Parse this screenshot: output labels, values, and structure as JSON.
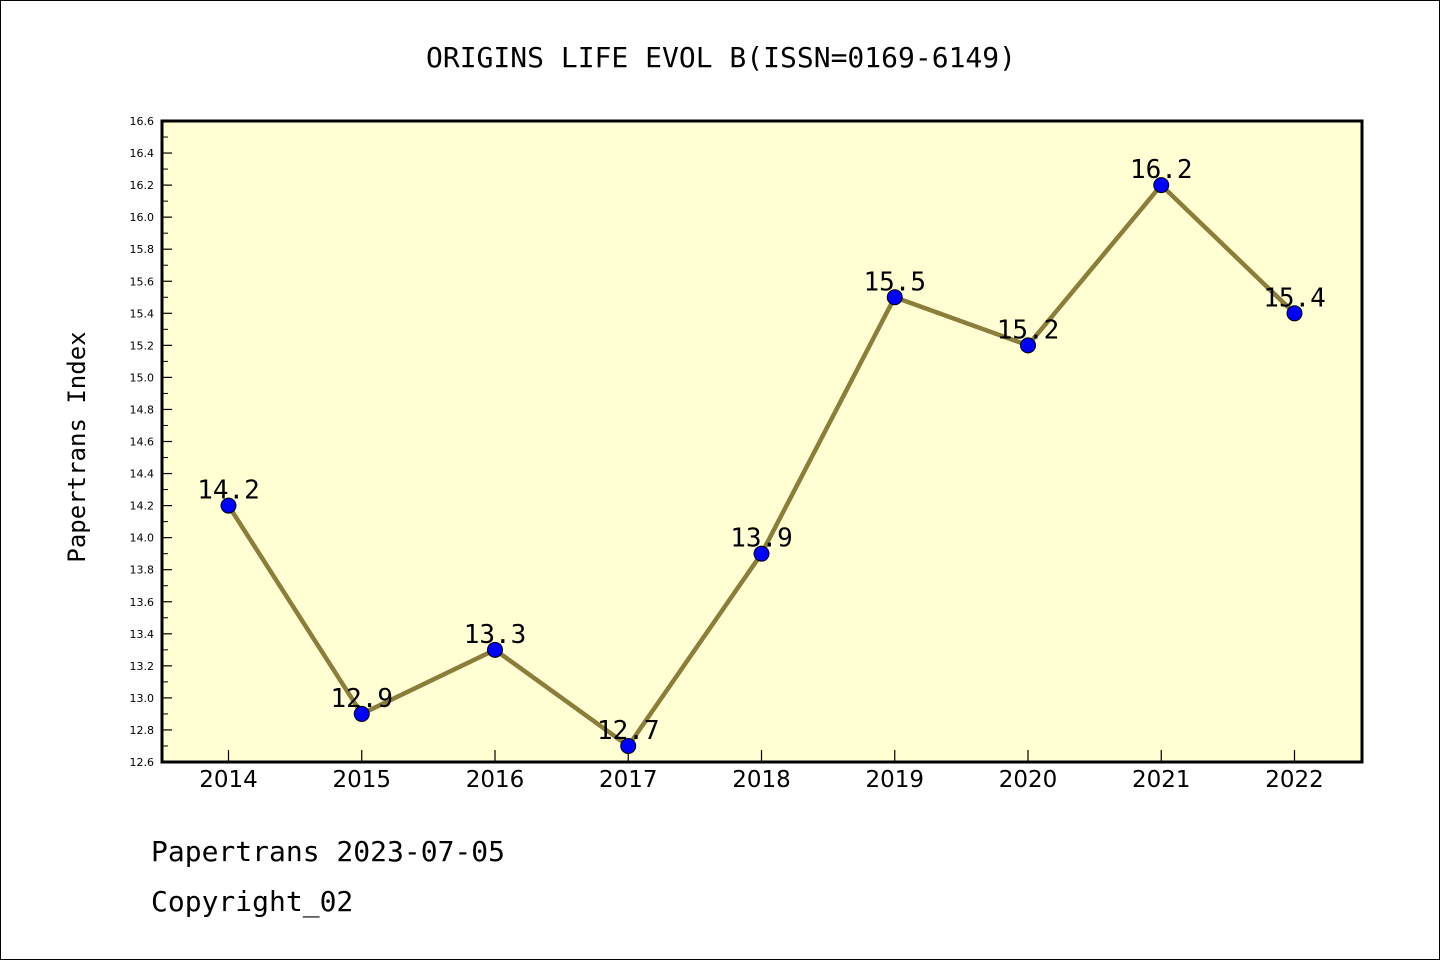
{
  "footer": {
    "line1": "Papertrans 2023-07-05",
    "line2": "Copyright_02"
  },
  "chart_data": {
    "type": "line",
    "title": "ORIGINS LIFE EVOL B(ISSN=0169-6149)",
    "xlabel": "",
    "ylabel": "Papertrans Index",
    "categories": [
      "2014",
      "2015",
      "2016",
      "2017",
      "2018",
      "2019",
      "2020",
      "2021",
      "2022"
    ],
    "values": [
      14.2,
      12.9,
      13.3,
      12.7,
      13.9,
      15.5,
      15.2,
      16.2,
      15.4
    ],
    "value_labels": [
      "14.2",
      "12.9",
      "13.3",
      "12.7",
      "13.9",
      "15.5",
      "15.2",
      "16.2",
      "15.4"
    ],
    "ylim": [
      12.6,
      16.6
    ],
    "y_ticks": [
      "12.6",
      "12.8",
      "13.0",
      "13.2",
      "13.4",
      "13.6",
      "13.8",
      "14.0",
      "14.2",
      "14.4",
      "14.6",
      "14.8",
      "15.0",
      "15.2",
      "15.4",
      "15.6",
      "15.8",
      "16.0",
      "16.2",
      "16.4",
      "16.6"
    ],
    "grid": false,
    "colors": {
      "plot_background": "#ffffd3",
      "line": "#8b7d3a",
      "marker": "#0000ff",
      "axes": "#000000"
    }
  }
}
